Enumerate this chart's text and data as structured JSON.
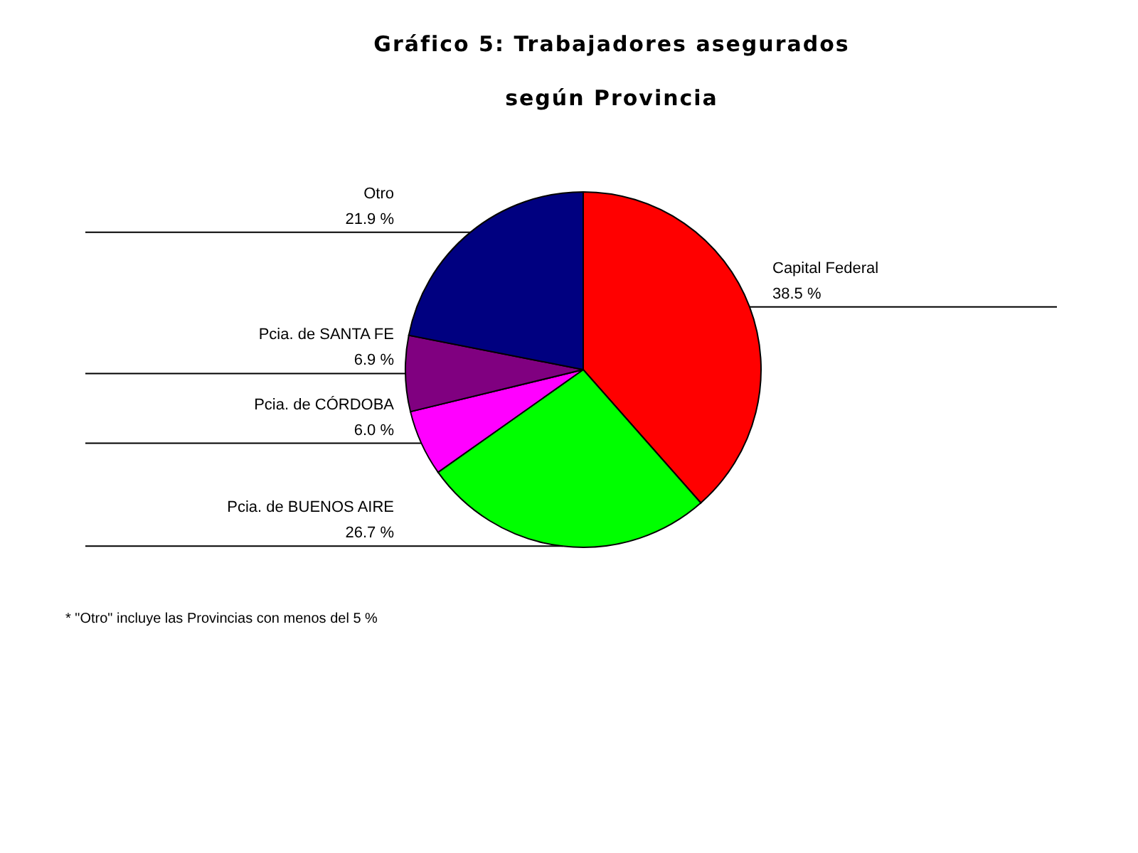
{
  "chart_data": {
    "type": "pie",
    "title": "Gráfico 5: Trabajadores asegurados según Provincia",
    "categories": [
      "Capital Federal",
      "Pcia. de BUENOS AIRE",
      "Pcia. de CÓRDOBA",
      "Pcia. de SANTA FE",
      "Otro"
    ],
    "values": [
      38.5,
      26.7,
      6.0,
      6.9,
      21.9
    ],
    "value_labels": [
      "38.5 %",
      "26.7 %",
      "6.0 %",
      "6.9 %",
      "21.9 %"
    ],
    "colors": [
      "#ff0000",
      "#00ff00",
      "#ff00ff",
      "#800080",
      "#000080"
    ],
    "annotations": [
      "* \"Otro\" incluye las Provincias con menos del 5 %"
    ],
    "legend": false
  }
}
